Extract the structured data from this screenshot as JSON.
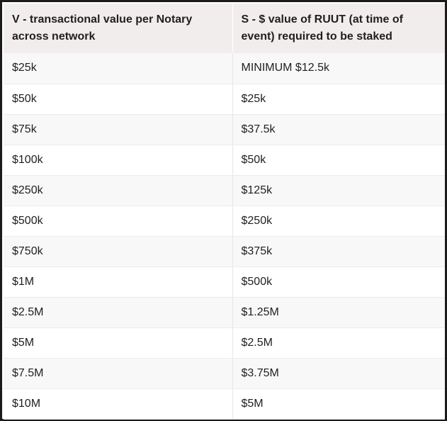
{
  "table": {
    "headers": [
      "V - transactional value per Notary across network",
      "S - $ value of RUUT (at time of event) required to be staked"
    ],
    "rows": [
      [
        "$25k",
        "MINIMUM $12.5k"
      ],
      [
        "$50k",
        "$25k"
      ],
      [
        "$75k",
        "$37.5k"
      ],
      [
        "$100k",
        "$50k"
      ],
      [
        "$250k",
        "$125k"
      ],
      [
        "$500k",
        "$250k"
      ],
      [
        "$750k",
        "$375k"
      ],
      [
        "$1M",
        "$500k"
      ],
      [
        "$2.5M",
        "$1.25M"
      ],
      [
        "$5M",
        "$2.5M"
      ],
      [
        "$7.5M",
        "$3.75M"
      ],
      [
        "$10M",
        "$5M"
      ]
    ]
  }
}
